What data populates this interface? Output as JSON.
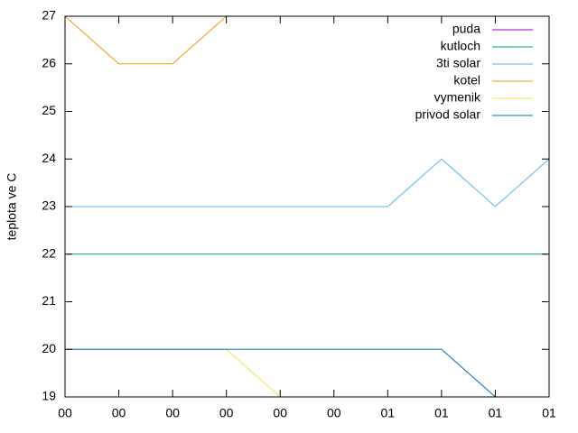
{
  "chart_data": {
    "type": "line",
    "y_label": "teplota ve C",
    "x": [
      0,
      1,
      2,
      3,
      4,
      5,
      6,
      7,
      8,
      9
    ],
    "xlim": [
      0,
      9
    ],
    "xticks": [
      {
        "value": 0,
        "label": "00"
      },
      {
        "value": 1,
        "label": "00"
      },
      {
        "value": 2,
        "label": "00"
      },
      {
        "value": 3,
        "label": "00"
      },
      {
        "value": 4,
        "label": "00"
      },
      {
        "value": 5,
        "label": "00"
      },
      {
        "value": 6,
        "label": "01"
      },
      {
        "value": 7,
        "label": "01"
      },
      {
        "value": 8,
        "label": "01"
      },
      {
        "value": 9,
        "label": "01"
      }
    ],
    "ylim": [
      19,
      27
    ],
    "yticks": [
      19,
      20,
      21,
      22,
      23,
      24,
      25,
      26,
      27
    ],
    "legend": "top-right",
    "series": [
      {
        "name": "puda",
        "color": "#9400d3",
        "values": [
          null,
          null,
          null,
          null,
          null,
          null,
          null,
          null,
          null,
          null
        ]
      },
      {
        "name": "kutloch",
        "color": "#009e73",
        "values": [
          22,
          22,
          22,
          22,
          22,
          22,
          22,
          22,
          22,
          22
        ]
      },
      {
        "name": "3ti solar",
        "color": "#56b4e9",
        "values": [
          23,
          23,
          23,
          23,
          23,
          23,
          23,
          24,
          23,
          24
        ]
      },
      {
        "name": "kotel",
        "color": "#e69f00",
        "values": [
          27,
          26,
          26,
          27,
          null,
          null,
          null,
          null,
          null,
          null
        ]
      },
      {
        "name": "vymenik",
        "color": "#f0e442",
        "values": [
          20,
          20,
          20,
          20,
          19,
          null,
          null,
          null,
          null,
          null
        ]
      },
      {
        "name": "privod solar",
        "color": "#0072b2",
        "values": [
          20,
          20,
          20,
          20,
          20,
          20,
          20,
          20,
          19,
          null
        ]
      }
    ]
  }
}
